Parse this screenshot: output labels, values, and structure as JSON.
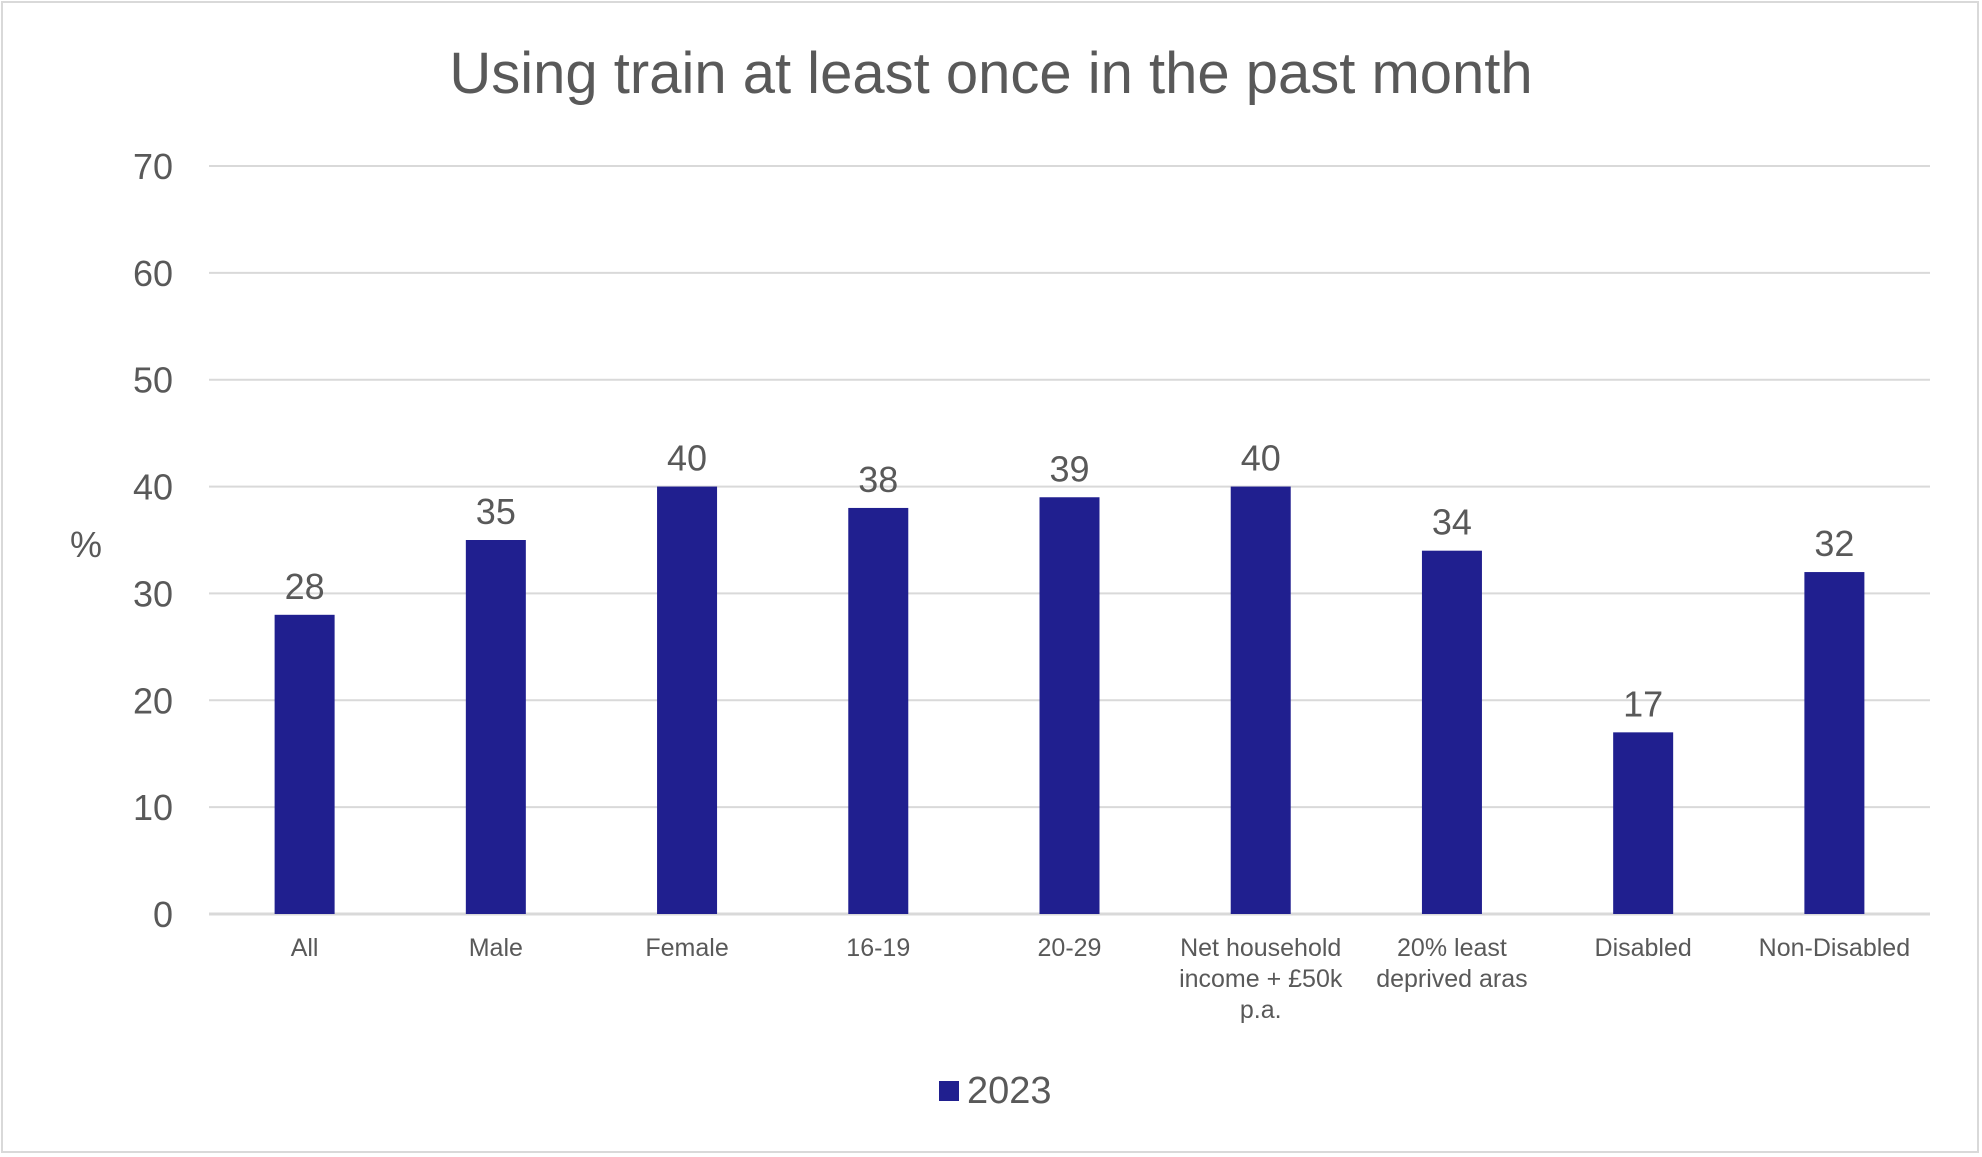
{
  "chart_data": {
    "type": "bar",
    "title": "Using train at least once in the past month",
    "xlabel": "",
    "ylabel": "%",
    "ylim": [
      0,
      70
    ],
    "yticks": [
      0,
      10,
      20,
      30,
      40,
      50,
      60,
      70
    ],
    "grid": true,
    "legend_position": "bottom",
    "categories": [
      [
        "All"
      ],
      [
        "Male"
      ],
      [
        "Female"
      ],
      [
        "16-19"
      ],
      [
        "20-29"
      ],
      [
        "Net household",
        "income + £50k",
        "p.a."
      ],
      [
        "20% least",
        "deprived aras"
      ],
      [
        "Disabled"
      ],
      [
        "Non-Disabled"
      ]
    ],
    "series": [
      {
        "name": "2023",
        "color": "#201F8F",
        "values": [
          28,
          35,
          40,
          38,
          39,
          40,
          34,
          17,
          32
        ]
      }
    ]
  }
}
